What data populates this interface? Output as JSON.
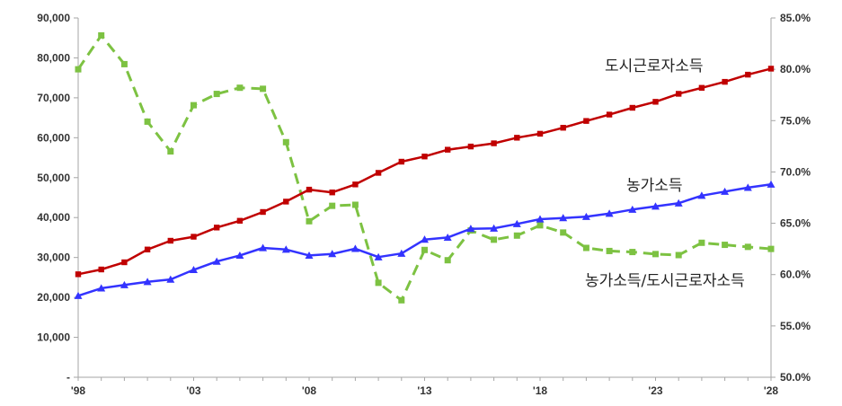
{
  "chart_data": {
    "type": "line",
    "x": [
      1998,
      1999,
      2000,
      2001,
      2002,
      2003,
      2004,
      2005,
      2006,
      2007,
      2008,
      2009,
      2010,
      2011,
      2012,
      2013,
      2014,
      2015,
      2016,
      2017,
      2018,
      2019,
      2020,
      2021,
      2022,
      2023,
      2024,
      2025,
      2026,
      2027,
      2028
    ],
    "x_tick_labels": [
      "'98",
      "'03",
      "'08",
      "'13",
      "'18",
      "'23",
      "'28"
    ],
    "x_tick_values": [
      1998,
      2003,
      2008,
      2013,
      2018,
      2023,
      2028
    ],
    "ylim_left": [
      0,
      90000
    ],
    "y_left_tick_labels": [
      "-",
      "10,000",
      "20,000",
      "30,000",
      "40,000",
      "50,000",
      "60,000",
      "70,000",
      "80,000",
      "90,000"
    ],
    "ylim_right": [
      50,
      85
    ],
    "y_right_tick_labels": [
      "50.0%",
      "55.0%",
      "60.0%",
      "65.0%",
      "70.0%",
      "75.0%",
      "80.0%",
      "85.0%"
    ],
    "grid": false,
    "series": [
      {
        "name": "도시근로자소득",
        "axis": "left",
        "color": "#c00000",
        "marker": "square",
        "dash": false,
        "values": [
          25800,
          27000,
          28800,
          32000,
          34200,
          35200,
          37500,
          39200,
          41400,
          44000,
          47000,
          46300,
          48300,
          51200,
          54000,
          55300,
          57000,
          57800,
          58600,
          60000,
          61000,
          62500,
          64200,
          65800,
          67500,
          69000,
          71000,
          72500,
          74000,
          75800,
          77300
        ]
      },
      {
        "name": "농가소득",
        "axis": "left",
        "color": "#3333ff",
        "marker": "triangle",
        "dash": false,
        "values": [
          20400,
          22300,
          23100,
          23900,
          24500,
          26900,
          29000,
          30500,
          32400,
          32000,
          30500,
          30900,
          32200,
          30100,
          31000,
          34500,
          35000,
          37200,
          37300,
          38400,
          39600,
          39900,
          40200,
          41000,
          42000,
          42800,
          43600,
          45500,
          46500,
          47500,
          48300
        ]
      },
      {
        "name": "농가소득/도시근로자소득",
        "axis": "right",
        "color": "#7dc242",
        "marker": "square",
        "dash": true,
        "values": [
          80.0,
          83.3,
          80.5,
          74.9,
          72.0,
          76.5,
          77.6,
          78.2,
          78.1,
          72.9,
          65.2,
          66.7,
          66.8,
          59.2,
          57.5,
          62.4,
          61.4,
          64.3,
          63.4,
          63.8,
          64.8,
          64.1,
          62.6,
          62.3,
          62.2,
          62.0,
          61.9,
          63.1,
          62.9,
          62.7,
          62.5
        ]
      }
    ]
  },
  "colors": {
    "axis": "#a6a6a6",
    "tick_text": "#333333"
  }
}
